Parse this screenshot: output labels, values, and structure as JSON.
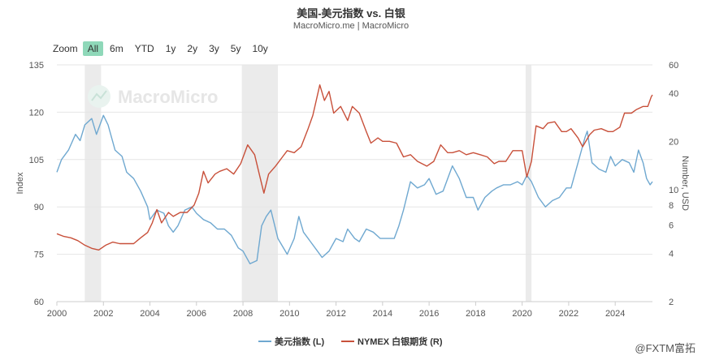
{
  "title": "美国-美元指数 vs. 白银",
  "subtitle": "MacroMicro.me | MacroMicro",
  "watermark": "MacroMicro",
  "brand": "@FXTM富拓",
  "zoom": {
    "label": "Zoom",
    "buttons": [
      "All",
      "6m",
      "YTD",
      "1y",
      "2y",
      "3y",
      "5y",
      "10y"
    ],
    "active": "All"
  },
  "colors": {
    "dxy": "#6fa8d0",
    "silver": "#c8503a",
    "recession": "#ebebeb",
    "grid": "#e6e6e6"
  },
  "chart_data": {
    "type": "line",
    "x_range": [
      2000.0,
      2025.6
    ],
    "x_ticks": [
      "2000",
      "2002",
      "2004",
      "2006",
      "2008",
      "2010",
      "2012",
      "2014",
      "2016",
      "2018",
      "2020",
      "2022",
      "2024"
    ],
    "y_left": {
      "label": "Index",
      "min": 60,
      "max": 135,
      "ticks": [
        60,
        75,
        90,
        105,
        120,
        135
      ]
    },
    "y_right": {
      "label": "Number, USD",
      "scale": "log",
      "min": 2,
      "max": 60,
      "ticks": [
        2,
        4,
        6,
        8,
        10,
        20,
        40,
        60
      ]
    },
    "grid": true,
    "legend_position": "bottom",
    "recession_bands": [
      [
        2001.2,
        2001.9
      ],
      [
        2007.95,
        2009.5
      ],
      [
        2020.15,
        2020.4
      ]
    ],
    "series": [
      {
        "name": "美元指数 (L)",
        "axis": "left",
        "points": [
          [
            2000.0,
            101
          ],
          [
            2000.2,
            105
          ],
          [
            2000.5,
            108
          ],
          [
            2000.8,
            113
          ],
          [
            2001.0,
            111
          ],
          [
            2001.2,
            116
          ],
          [
            2001.5,
            118
          ],
          [
            2001.7,
            113
          ],
          [
            2002.0,
            119
          ],
          [
            2002.2,
            116
          ],
          [
            2002.5,
            108
          ],
          [
            2002.8,
            106
          ],
          [
            2003.0,
            101
          ],
          [
            2003.3,
            99
          ],
          [
            2003.6,
            95
          ],
          [
            2003.9,
            90
          ],
          [
            2004.0,
            86
          ],
          [
            2004.3,
            89
          ],
          [
            2004.6,
            88
          ],
          [
            2004.8,
            84
          ],
          [
            2005.0,
            82
          ],
          [
            2005.2,
            84
          ],
          [
            2005.5,
            89
          ],
          [
            2005.8,
            90
          ],
          [
            2006.0,
            88
          ],
          [
            2006.3,
            86
          ],
          [
            2006.6,
            85
          ],
          [
            2006.9,
            83
          ],
          [
            2007.2,
            83
          ],
          [
            2007.5,
            81
          ],
          [
            2007.8,
            77
          ],
          [
            2008.0,
            76
          ],
          [
            2008.3,
            72
          ],
          [
            2008.6,
            73
          ],
          [
            2008.8,
            84
          ],
          [
            2009.0,
            87
          ],
          [
            2009.2,
            89
          ],
          [
            2009.5,
            80
          ],
          [
            2009.9,
            75
          ],
          [
            2010.2,
            80
          ],
          [
            2010.4,
            87
          ],
          [
            2010.6,
            82
          ],
          [
            2010.9,
            79
          ],
          [
            2011.2,
            76
          ],
          [
            2011.4,
            74
          ],
          [
            2011.7,
            76
          ],
          [
            2012.0,
            80
          ],
          [
            2012.3,
            79
          ],
          [
            2012.5,
            83
          ],
          [
            2012.8,
            80
          ],
          [
            2013.0,
            79
          ],
          [
            2013.3,
            83
          ],
          [
            2013.6,
            82
          ],
          [
            2013.9,
            80
          ],
          [
            2014.2,
            80
          ],
          [
            2014.5,
            80
          ],
          [
            2014.7,
            84
          ],
          [
            2014.9,
            89
          ],
          [
            2015.2,
            98
          ],
          [
            2015.5,
            96
          ],
          [
            2015.8,
            97
          ],
          [
            2016.0,
            99
          ],
          [
            2016.3,
            94
          ],
          [
            2016.6,
            95
          ],
          [
            2016.9,
            101
          ],
          [
            2017.0,
            103
          ],
          [
            2017.3,
            99
          ],
          [
            2017.6,
            93
          ],
          [
            2017.9,
            93
          ],
          [
            2018.1,
            89
          ],
          [
            2018.4,
            93
          ],
          [
            2018.7,
            95
          ],
          [
            2018.9,
            96
          ],
          [
            2019.2,
            97
          ],
          [
            2019.5,
            97
          ],
          [
            2019.8,
            98
          ],
          [
            2020.0,
            97
          ],
          [
            2020.2,
            100
          ],
          [
            2020.4,
            98
          ],
          [
            2020.7,
            93
          ],
          [
            2021.0,
            90
          ],
          [
            2021.3,
            92
          ],
          [
            2021.6,
            93
          ],
          [
            2021.9,
            96
          ],
          [
            2022.1,
            96
          ],
          [
            2022.4,
            104
          ],
          [
            2022.7,
            112
          ],
          [
            2022.8,
            114
          ],
          [
            2023.0,
            104
          ],
          [
            2023.3,
            102
          ],
          [
            2023.6,
            101
          ],
          [
            2023.8,
            106
          ],
          [
            2024.0,
            103
          ],
          [
            2024.3,
            105
          ],
          [
            2024.6,
            104
          ],
          [
            2024.8,
            101
          ],
          [
            2025.0,
            108
          ],
          [
            2025.2,
            104
          ],
          [
            2025.35,
            99
          ],
          [
            2025.5,
            97
          ],
          [
            2025.6,
            98
          ]
        ]
      },
      {
        "name": "NYMEX 白银期货 (R)",
        "axis": "right",
        "points": [
          [
            2000.0,
            5.3
          ],
          [
            2000.3,
            5.1
          ],
          [
            2000.6,
            5.0
          ],
          [
            2000.9,
            4.8
          ],
          [
            2001.2,
            4.5
          ],
          [
            2001.5,
            4.3
          ],
          [
            2001.8,
            4.2
          ],
          [
            2002.1,
            4.5
          ],
          [
            2002.4,
            4.7
          ],
          [
            2002.7,
            4.6
          ],
          [
            2003.0,
            4.6
          ],
          [
            2003.3,
            4.6
          ],
          [
            2003.6,
            5.0
          ],
          [
            2003.9,
            5.4
          ],
          [
            2004.1,
            6.2
          ],
          [
            2004.3,
            7.5
          ],
          [
            2004.5,
            6.2
          ],
          [
            2004.8,
            7.2
          ],
          [
            2005.0,
            6.8
          ],
          [
            2005.3,
            7.2
          ],
          [
            2005.6,
            7.2
          ],
          [
            2005.9,
            8.0
          ],
          [
            2006.1,
            9.5
          ],
          [
            2006.3,
            13.0
          ],
          [
            2006.5,
            11.0
          ],
          [
            2006.8,
            12.5
          ],
          [
            2007.0,
            13.0
          ],
          [
            2007.3,
            13.5
          ],
          [
            2007.6,
            12.5
          ],
          [
            2007.9,
            14.5
          ],
          [
            2008.2,
            19.0
          ],
          [
            2008.5,
            16.5
          ],
          [
            2008.7,
            12.5
          ],
          [
            2008.9,
            9.5
          ],
          [
            2009.1,
            12.5
          ],
          [
            2009.4,
            14.0
          ],
          [
            2009.7,
            16.0
          ],
          [
            2009.9,
            17.5
          ],
          [
            2010.2,
            17.0
          ],
          [
            2010.5,
            18.5
          ],
          [
            2010.8,
            24.0
          ],
          [
            2011.0,
            29.0
          ],
          [
            2011.3,
            45.0
          ],
          [
            2011.5,
            36.0
          ],
          [
            2011.7,
            41.0
          ],
          [
            2011.9,
            30.0
          ],
          [
            2012.2,
            33.0
          ],
          [
            2012.5,
            27.0
          ],
          [
            2012.7,
            33.0
          ],
          [
            2013.0,
            30.0
          ],
          [
            2013.3,
            23.0
          ],
          [
            2013.5,
            19.5
          ],
          [
            2013.8,
            21.0
          ],
          [
            2014.0,
            20.0
          ],
          [
            2014.3,
            20.0
          ],
          [
            2014.6,
            19.5
          ],
          [
            2014.9,
            16.0
          ],
          [
            2015.2,
            16.5
          ],
          [
            2015.5,
            15.0
          ],
          [
            2015.9,
            14.0
          ],
          [
            2016.2,
            15.0
          ],
          [
            2016.5,
            19.0
          ],
          [
            2016.8,
            17.0
          ],
          [
            2017.0,
            17.0
          ],
          [
            2017.3,
            17.5
          ],
          [
            2017.6,
            16.5
          ],
          [
            2017.9,
            17.0
          ],
          [
            2018.2,
            16.5
          ],
          [
            2018.5,
            16.0
          ],
          [
            2018.8,
            14.5
          ],
          [
            2019.0,
            15.0
          ],
          [
            2019.3,
            15.0
          ],
          [
            2019.6,
            17.5
          ],
          [
            2019.8,
            17.5
          ],
          [
            2020.0,
            17.5
          ],
          [
            2020.2,
            12.0
          ],
          [
            2020.4,
            15.0
          ],
          [
            2020.6,
            25.0
          ],
          [
            2020.9,
            24.0
          ],
          [
            2021.1,
            26.0
          ],
          [
            2021.4,
            26.5
          ],
          [
            2021.7,
            23.0
          ],
          [
            2021.9,
            23.0
          ],
          [
            2022.1,
            24.0
          ],
          [
            2022.4,
            21.0
          ],
          [
            2022.6,
            18.5
          ],
          [
            2022.9,
            22.0
          ],
          [
            2023.1,
            23.5
          ],
          [
            2023.4,
            24.0
          ],
          [
            2023.7,
            23.0
          ],
          [
            2023.9,
            23.0
          ],
          [
            2024.2,
            24.5
          ],
          [
            2024.4,
            30.0
          ],
          [
            2024.7,
            30.0
          ],
          [
            2024.9,
            31.5
          ],
          [
            2025.2,
            33.0
          ],
          [
            2025.4,
            33.0
          ],
          [
            2025.55,
            38.0
          ],
          [
            2025.6,
            39.0
          ]
        ]
      }
    ]
  }
}
